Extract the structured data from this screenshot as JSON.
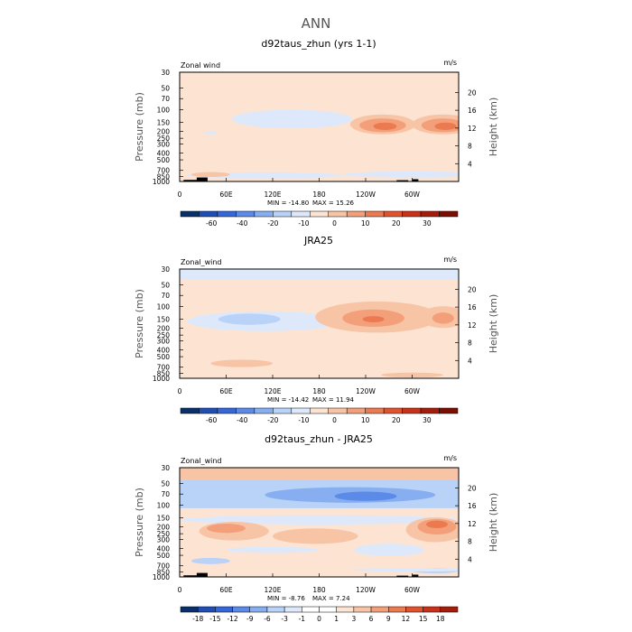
{
  "main_title": "ANN",
  "colors": {
    "frame": "#000000",
    "mountain": "#000000"
  },
  "chart_data": [
    {
      "type": "contour",
      "title": "d92taus_zhun (yrs 1-1)",
      "left_label": "Zonal wind",
      "right_label": "m/s",
      "xlabel": "",
      "ylabel": "Pressure (mb)",
      "y2label": "Height (km)",
      "x_ticks": [
        "0",
        "60E",
        "120E",
        "180",
        "120W",
        "60W"
      ],
      "x_tick_values": [
        0,
        60,
        120,
        180,
        240,
        300
      ],
      "xlim": [
        0,
        360
      ],
      "y_ticks": [
        "30",
        "50",
        "70",
        "100",
        "150",
        "200",
        "250",
        "300",
        "400",
        "500",
        "700",
        "850",
        "1000"
      ],
      "y_tick_values": [
        30,
        50,
        70,
        100,
        150,
        200,
        250,
        300,
        400,
        500,
        700,
        850,
        1000
      ],
      "ylim": [
        1000,
        30
      ],
      "y2_ticks": [
        "4",
        "8",
        "12",
        "16",
        "20"
      ],
      "y2_tick_values": [
        4,
        8,
        12,
        16,
        20
      ],
      "min_text": "MIN = -14.80",
      "max_text": "MAX =  15.26",
      "colorbar": {
        "levels": [
          -60,
          -40,
          -20,
          -10,
          0,
          10,
          20,
          30
        ],
        "level_labels": [
          "-60",
          "-40",
          "-20",
          "-10",
          "0",
          "10",
          "20",
          "30"
        ],
        "colors": [
          "#08306b",
          "#1f4fb5",
          "#3468d8",
          "#5b8ae8",
          "#86aef0",
          "#b9d2f7",
          "#dde9fb",
          "#fde4d2",
          "#f8c4a6",
          "#f3a07a",
          "#ec7a50",
          "#e0532d",
          "#c93218",
          "#a51d0a",
          "#7a0e02"
        ]
      },
      "background": "#fde4d2",
      "features": [
        {
          "kind": "ellipse",
          "lon": 145,
          "p": 135,
          "rlon": 78,
          "rp": 0.3,
          "color": "#dde9fb"
        },
        {
          "kind": "ellipse",
          "lon": 262,
          "p": 160,
          "rlon": 42,
          "rp": 0.32,
          "color": "#f8c4a6"
        },
        {
          "kind": "ellipse",
          "lon": 340,
          "p": 160,
          "rlon": 40,
          "rp": 0.32,
          "color": "#f8c4a6"
        },
        {
          "kind": "ellipse",
          "lon": 262,
          "p": 165,
          "rlon": 30,
          "rp": 0.22,
          "color": "#f3a07a"
        },
        {
          "kind": "ellipse",
          "lon": 340,
          "p": 165,
          "rlon": 28,
          "rp": 0.22,
          "color": "#f3a07a"
        },
        {
          "kind": "ellipse",
          "lon": 265,
          "p": 170,
          "rlon": 15,
          "rp": 0.12,
          "color": "#ec7a50"
        },
        {
          "kind": "ellipse",
          "lon": 343,
          "p": 170,
          "rlon": 14,
          "rp": 0.12,
          "color": "#ec7a50"
        },
        {
          "kind": "ellipse",
          "lon": 40,
          "p": 210,
          "rlon": 8,
          "rp": 0.05,
          "color": "#dde9fb"
        },
        {
          "kind": "ellipse",
          "lon": 110,
          "p": 820,
          "rlon": 100,
          "rp": 0.1,
          "color": "#dde9fb"
        },
        {
          "kind": "ellipse",
          "lon": 300,
          "p": 800,
          "rlon": 90,
          "rp": 0.1,
          "color": "#dde9fb"
        },
        {
          "kind": "ellipse",
          "lon": 40,
          "p": 800,
          "rlon": 25,
          "rp": 0.08,
          "color": "#f8c4a6"
        }
      ],
      "mountains": [
        {
          "lon0": 5,
          "lon1": 28,
          "p": 950
        },
        {
          "lon0": 22,
          "lon1": 36,
          "p": 880
        },
        {
          "lon0": 280,
          "lon1": 295,
          "p": 960
        },
        {
          "lon0": 300,
          "lon1": 308,
          "p": 930
        }
      ]
    },
    {
      "type": "contour",
      "title": "JRA25",
      "left_label": "Zonal_wind",
      "right_label": "m/s",
      "xlabel": "",
      "ylabel": "Pressure (mb)",
      "y2label": "Height (km)",
      "x_ticks": [
        "0",
        "60E",
        "120E",
        "180",
        "120W",
        "60W"
      ],
      "x_tick_values": [
        0,
        60,
        120,
        180,
        240,
        300
      ],
      "xlim": [
        0,
        360
      ],
      "y_ticks": [
        "30",
        "50",
        "70",
        "100",
        "150",
        "200",
        "250",
        "300",
        "400",
        "500",
        "700",
        "850",
        "1000"
      ],
      "y_tick_values": [
        30,
        50,
        70,
        100,
        150,
        200,
        250,
        300,
        400,
        500,
        700,
        850,
        1000
      ],
      "ylim": [
        1000,
        30
      ],
      "y2_ticks": [
        "4",
        "8",
        "12",
        "16",
        "20"
      ],
      "y2_tick_values": [
        4,
        8,
        12,
        16,
        20
      ],
      "min_text": "MIN = -14.42",
      "max_text": "MAX =  11.94",
      "colorbar": {
        "levels": [
          -60,
          -40,
          -20,
          -10,
          0,
          10,
          20,
          30
        ],
        "level_labels": [
          "-60",
          "-40",
          "-20",
          "-10",
          "0",
          "10",
          "20",
          "30"
        ],
        "colors": [
          "#08306b",
          "#1f4fb5",
          "#3468d8",
          "#5b8ae8",
          "#86aef0",
          "#b9d2f7",
          "#dde9fb",
          "#fde4d2",
          "#f8c4a6",
          "#f3a07a",
          "#ec7a50",
          "#e0532d",
          "#c93218",
          "#a51d0a",
          "#7a0e02"
        ]
      },
      "background": "#fde4d2",
      "features": [
        {
          "kind": "band",
          "p0": 30,
          "p1": 42,
          "color": "#dde9fb"
        },
        {
          "kind": "ellipse",
          "lon": 110,
          "p": 160,
          "rlon": 100,
          "rp": 0.32,
          "color": "#dde9fb"
        },
        {
          "kind": "ellipse",
          "lon": 90,
          "p": 150,
          "rlon": 40,
          "rp": 0.18,
          "color": "#b9d2f7"
        },
        {
          "kind": "ellipse",
          "lon": 255,
          "p": 140,
          "rlon": 80,
          "rp": 0.5,
          "color": "#f8c4a6"
        },
        {
          "kind": "ellipse",
          "lon": 340,
          "p": 140,
          "rlon": 30,
          "rp": 0.35,
          "color": "#f8c4a6"
        },
        {
          "kind": "ellipse",
          "lon": 250,
          "p": 145,
          "rlon": 40,
          "rp": 0.28,
          "color": "#f3a07a"
        },
        {
          "kind": "ellipse",
          "lon": 340,
          "p": 145,
          "rlon": 14,
          "rp": 0.18,
          "color": "#f3a07a"
        },
        {
          "kind": "ellipse",
          "lon": 250,
          "p": 150,
          "rlon": 14,
          "rp": 0.1,
          "color": "#ec7a50"
        },
        {
          "kind": "ellipse",
          "lon": 80,
          "p": 620,
          "rlon": 40,
          "rp": 0.12,
          "color": "#f8c4a6"
        },
        {
          "kind": "ellipse",
          "lon": 300,
          "p": 900,
          "rlon": 40,
          "rp": 0.08,
          "color": "#f8c4a6"
        }
      ],
      "mountains": []
    },
    {
      "type": "contour",
      "title": "d92taus_zhun - JRA25",
      "left_label": "Zonal_wind",
      "right_label": "m/s",
      "xlabel": "",
      "ylabel": "Pressure (mb)",
      "y2label": "Height (km)",
      "x_ticks": [
        "0",
        "60E",
        "120E",
        "180",
        "120W",
        "60W"
      ],
      "x_tick_values": [
        0,
        60,
        120,
        180,
        240,
        300
      ],
      "xlim": [
        0,
        360
      ],
      "y_ticks": [
        "30",
        "50",
        "70",
        "100",
        "150",
        "200",
        "250",
        "300",
        "400",
        "500",
        "700",
        "850",
        "1000"
      ],
      "y_tick_values": [
        30,
        50,
        70,
        100,
        150,
        200,
        250,
        300,
        400,
        500,
        700,
        850,
        1000
      ],
      "ylim": [
        1000,
        30
      ],
      "y2_ticks": [
        "4",
        "8",
        "12",
        "16",
        "20"
      ],
      "y2_tick_values": [
        4,
        8,
        12,
        16,
        20
      ],
      "min_text": "MIN =  -8.76",
      "max_text": "MAX =   7.24",
      "colorbar": {
        "levels": [
          -18,
          -15,
          -12,
          -9,
          -6,
          -3,
          -1,
          0,
          1,
          3,
          6,
          9,
          12,
          15,
          18
        ],
        "level_labels": [
          "-18",
          "-15",
          "-12",
          "-9",
          "-6",
          "-3",
          "-1",
          "0",
          "1",
          "3",
          "6",
          "9",
          "12",
          "15",
          "18"
        ],
        "colors": [
          "#08306b",
          "#1f4fb5",
          "#3468d8",
          "#5b8ae8",
          "#86aef0",
          "#b9d2f7",
          "#dde9fb",
          "#ffffff",
          "#ffffff",
          "#fde4d2",
          "#f8c4a6",
          "#f3a07a",
          "#ec7a50",
          "#e0532d",
          "#c93218",
          "#a51d0a"
        ]
      },
      "background": "#fde4d2",
      "features": [
        {
          "kind": "band",
          "p0": 30,
          "p1": 44,
          "color": "#f8c4a6"
        },
        {
          "kind": "band",
          "p0": 44,
          "p1": 110,
          "color": "#b9d2f7"
        },
        {
          "kind": "ellipse",
          "lon": 220,
          "p": 72,
          "rlon": 110,
          "rp": 0.25,
          "color": "#86aef0"
        },
        {
          "kind": "ellipse",
          "lon": 240,
          "p": 75,
          "rlon": 40,
          "rp": 0.15,
          "color": "#5b8ae8"
        },
        {
          "kind": "ellipse",
          "lon": 180,
          "p": 160,
          "rlon": 180,
          "rp": 0.15,
          "color": "#dde9fb"
        },
        {
          "kind": "ellipse",
          "lon": 70,
          "p": 230,
          "rlon": 45,
          "rp": 0.3,
          "color": "#f8c4a6"
        },
        {
          "kind": "ellipse",
          "lon": 60,
          "p": 210,
          "rlon": 25,
          "rp": 0.15,
          "color": "#f3a07a"
        },
        {
          "kind": "ellipse",
          "lon": 175,
          "p": 270,
          "rlon": 55,
          "rp": 0.25,
          "color": "#f8c4a6"
        },
        {
          "kind": "ellipse",
          "lon": 330,
          "p": 220,
          "rlon": 38,
          "rp": 0.4,
          "color": "#f8c4a6"
        },
        {
          "kind": "ellipse",
          "lon": 332,
          "p": 200,
          "rlon": 25,
          "rp": 0.25,
          "color": "#f3a07a"
        },
        {
          "kind": "ellipse",
          "lon": 332,
          "p": 185,
          "rlon": 14,
          "rp": 0.12,
          "color": "#ec7a50"
        },
        {
          "kind": "ellipse",
          "lon": 120,
          "p": 420,
          "rlon": 60,
          "rp": 0.1,
          "color": "#dde9fb"
        },
        {
          "kind": "ellipse",
          "lon": 270,
          "p": 420,
          "rlon": 45,
          "rp": 0.2,
          "color": "#dde9fb"
        },
        {
          "kind": "ellipse",
          "lon": 40,
          "p": 600,
          "rlon": 25,
          "rp": 0.1,
          "color": "#b9d2f7"
        },
        {
          "kind": "ellipse",
          "lon": 330,
          "p": 820,
          "rlon": 30,
          "rp": 0.08,
          "color": "#b9d2f7"
        },
        {
          "kind": "ellipse",
          "lon": 300,
          "p": 800,
          "rlon": 80,
          "rp": 0.05,
          "color": "#dde9fb"
        }
      ],
      "mountains": [
        {
          "lon0": 5,
          "lon1": 28,
          "p": 950
        },
        {
          "lon0": 22,
          "lon1": 36,
          "p": 880
        },
        {
          "lon0": 280,
          "lon1": 295,
          "p": 960
        },
        {
          "lon0": 300,
          "lon1": 308,
          "p": 930
        }
      ]
    }
  ]
}
